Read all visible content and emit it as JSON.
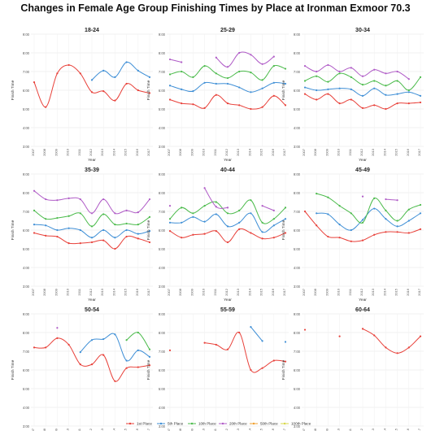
{
  "title": "Changes in Female Age Group Finishing Times by Place at Ironman Exmoor 70.3",
  "colors": {
    "1st": "#e8413a",
    "5th": "#3f8fd6",
    "10th": "#4cbb4c",
    "20th": "#b05cc7",
    "50th": "#f0a030",
    "100th": "#d8d84a"
  },
  "chart_data": {
    "type": "line",
    "title": "Changes in Female Age Group Finishing Times by Place at Ironman Exmoor 70.3",
    "xlabel": "Year",
    "ylabel": "Finish Time",
    "x": [
      "2007",
      "2008",
      "2009",
      "2010",
      "2011",
      "2012",
      "2013",
      "2014",
      "2015",
      "2016",
      "2017"
    ],
    "y_ticks": [
      "3:00",
      "4:00",
      "5:00",
      "6:00",
      "7:00",
      "8:00",
      "9:00"
    ],
    "ylim": [
      3,
      9
    ],
    "legend_position": "bottom",
    "legend": [
      "1st Place",
      "5th Place",
      "10th Place",
      "20th Place",
      "50th Place",
      "100th Place"
    ],
    "panels": [
      {
        "name": "18-24",
        "series": [
          {
            "name": "1st Place",
            "key": "1st",
            "values": [
              6.43,
              5.1,
              6.9,
              7.35,
              6.9,
              5.9,
              5.95,
              5.45,
              6.35,
              6.0,
              5.85
            ]
          },
          {
            "name": "5th Place",
            "key": "5th",
            "values": [
              null,
              null,
              null,
              null,
              null,
              6.55,
              7.05,
              6.7,
              7.5,
              7.05,
              6.7
            ]
          }
        ]
      },
      {
        "name": "25-29",
        "series": [
          {
            "name": "1st Place",
            "key": "1st",
            "values": [
              5.5,
              5.3,
              5.25,
              5.05,
              5.75,
              5.3,
              5.2,
              5.0,
              5.1,
              5.7,
              5.2
            ]
          },
          {
            "name": "5th Place",
            "key": "5th",
            "values": [
              6.25,
              6.05,
              5.95,
              6.4,
              6.35,
              6.35,
              6.15,
              5.9,
              6.1,
              6.4,
              6.35
            ]
          },
          {
            "name": "10th Place",
            "key": "10th",
            "values": [
              6.85,
              7.0,
              6.7,
              7.3,
              6.9,
              6.65,
              7.0,
              6.95,
              6.55,
              7.3,
              7.15
            ]
          },
          {
            "name": "20th Place",
            "key": "20th",
            "values": [
              7.65,
              7.5,
              null,
              null,
              7.75,
              7.25,
              8.0,
              7.9,
              7.4,
              7.8,
              null
            ]
          }
        ]
      },
      {
        "name": "30-34",
        "series": [
          {
            "name": "1st Place",
            "key": "1st",
            "values": [
              5.8,
              5.5,
              5.8,
              5.3,
              5.5,
              5.05,
              5.2,
              5.0,
              5.3,
              5.3,
              5.35
            ]
          },
          {
            "name": "5th Place",
            "key": "5th",
            "values": [
              6.15,
              6.0,
              6.05,
              6.1,
              6.05,
              5.7,
              6.1,
              5.75,
              5.8,
              5.9,
              5.7
            ]
          },
          {
            "name": "10th Place",
            "key": "10th",
            "values": [
              6.5,
              6.75,
              6.45,
              6.9,
              6.7,
              6.3,
              6.5,
              6.25,
              6.5,
              6.0,
              6.7
            ]
          },
          {
            "name": "20th Place",
            "key": "20th",
            "values": [
              7.3,
              7.0,
              7.35,
              7.0,
              7.2,
              6.75,
              7.1,
              6.9,
              7.0,
              6.6,
              null
            ]
          }
        ]
      },
      {
        "name": "35-39",
        "series": [
          {
            "name": "1st Place",
            "key": "1st",
            "values": [
              5.85,
              5.7,
              5.65,
              5.3,
              5.3,
              5.35,
              5.45,
              5.0,
              5.65,
              5.55,
              5.35
            ]
          },
          {
            "name": "5th Place",
            "key": "5th",
            "values": [
              6.3,
              6.25,
              6.0,
              6.1,
              6.0,
              5.6,
              6.0,
              5.6,
              6.0,
              5.8,
              5.95
            ]
          },
          {
            "name": "10th Place",
            "key": "10th",
            "values": [
              7.05,
              6.6,
              6.65,
              6.75,
              6.9,
              6.2,
              6.85,
              6.3,
              6.35,
              6.3,
              6.7
            ]
          },
          {
            "name": "20th Place",
            "key": "20th",
            "values": [
              8.1,
              7.65,
              7.6,
              7.7,
              7.65,
              6.9,
              7.65,
              6.9,
              7.05,
              6.95,
              7.65
            ]
          }
        ]
      },
      {
        "name": "40-44",
        "series": [
          {
            "name": "1st Place",
            "key": "1st",
            "values": [
              5.95,
              5.6,
              5.75,
              5.8,
              5.95,
              5.35,
              6.05,
              5.85,
              5.55,
              5.6,
              5.85
            ]
          },
          {
            "name": "5th Place",
            "key": "5th",
            "values": [
              6.4,
              6.4,
              6.7,
              6.45,
              6.85,
              6.2,
              6.4,
              6.9,
              5.9,
              6.25,
              6.6
            ]
          },
          {
            "name": "10th Place",
            "key": "10th",
            "values": [
              6.6,
              7.2,
              6.9,
              7.3,
              7.5,
              6.9,
              7.05,
              7.6,
              6.4,
              6.6,
              7.2
            ]
          },
          {
            "name": "20th Place",
            "key": "20th",
            "values": [
              7.3,
              null,
              null,
              8.25,
              7.25,
              7.2,
              null,
              null,
              7.3,
              7.05,
              null
            ]
          }
        ]
      },
      {
        "name": "45-49",
        "series": [
          {
            "name": "1st Place",
            "key": "1st",
            "values": [
              7.0,
              6.25,
              5.65,
              5.6,
              5.4,
              5.45,
              5.75,
              5.9,
              5.9,
              5.85,
              6.05
            ]
          },
          {
            "name": "5th Place",
            "key": "5th",
            "values": [
              null,
              6.9,
              6.85,
              6.3,
              6.0,
              6.55,
              7.15,
              6.6,
              6.2,
              6.5,
              6.9
            ]
          },
          {
            "name": "10th Place",
            "key": "10th",
            "values": [
              null,
              7.95,
              7.75,
              7.3,
              6.9,
              6.4,
              7.7,
              7.05,
              6.5,
              7.1,
              7.35
            ]
          },
          {
            "name": "20th Place",
            "key": "20th",
            "values": [
              null,
              null,
              null,
              null,
              null,
              7.8,
              null,
              7.65,
              7.6,
              null,
              null
            ]
          }
        ]
      },
      {
        "name": "50-54",
        "series": [
          {
            "name": "1st Place",
            "key": "1st",
            "values": [
              7.2,
              7.2,
              7.7,
              7.35,
              6.3,
              6.3,
              6.8,
              5.4,
              6.1,
              6.15,
              6.25
            ]
          },
          {
            "name": "5th Place",
            "key": "5th",
            "values": [
              null,
              null,
              null,
              null,
              6.95,
              7.6,
              7.65,
              7.9,
              6.5,
              7.05,
              6.7
            ]
          },
          {
            "name": "10th Place",
            "key": "10th",
            "values": [
              null,
              null,
              null,
              null,
              null,
              null,
              null,
              null,
              7.6,
              8.0,
              7.1
            ]
          },
          {
            "name": "20th Place",
            "key": "20th",
            "values": [
              null,
              null,
              8.25,
              null,
              null,
              null,
              null,
              null,
              null,
              null,
              null
            ]
          }
        ]
      },
      {
        "name": "55-59",
        "series": [
          {
            "name": "1st Place",
            "key": "1st",
            "values": [
              7.05,
              null,
              null,
              7.45,
              7.35,
              7.1,
              8.0,
              6.0,
              6.1,
              6.5,
              6.45
            ]
          },
          {
            "name": "5th Place",
            "key": "5th",
            "values": [
              null,
              null,
              null,
              null,
              null,
              null,
              null,
              8.3,
              7.55,
              null,
              7.5
            ]
          }
        ]
      },
      {
        "name": "60-64",
        "series": [
          {
            "name": "1st Place",
            "key": "1st",
            "values": [
              8.15,
              null,
              null,
              7.8,
              null,
              8.2,
              7.85,
              7.2,
              6.9,
              7.2,
              7.8
            ]
          }
        ]
      }
    ]
  }
}
